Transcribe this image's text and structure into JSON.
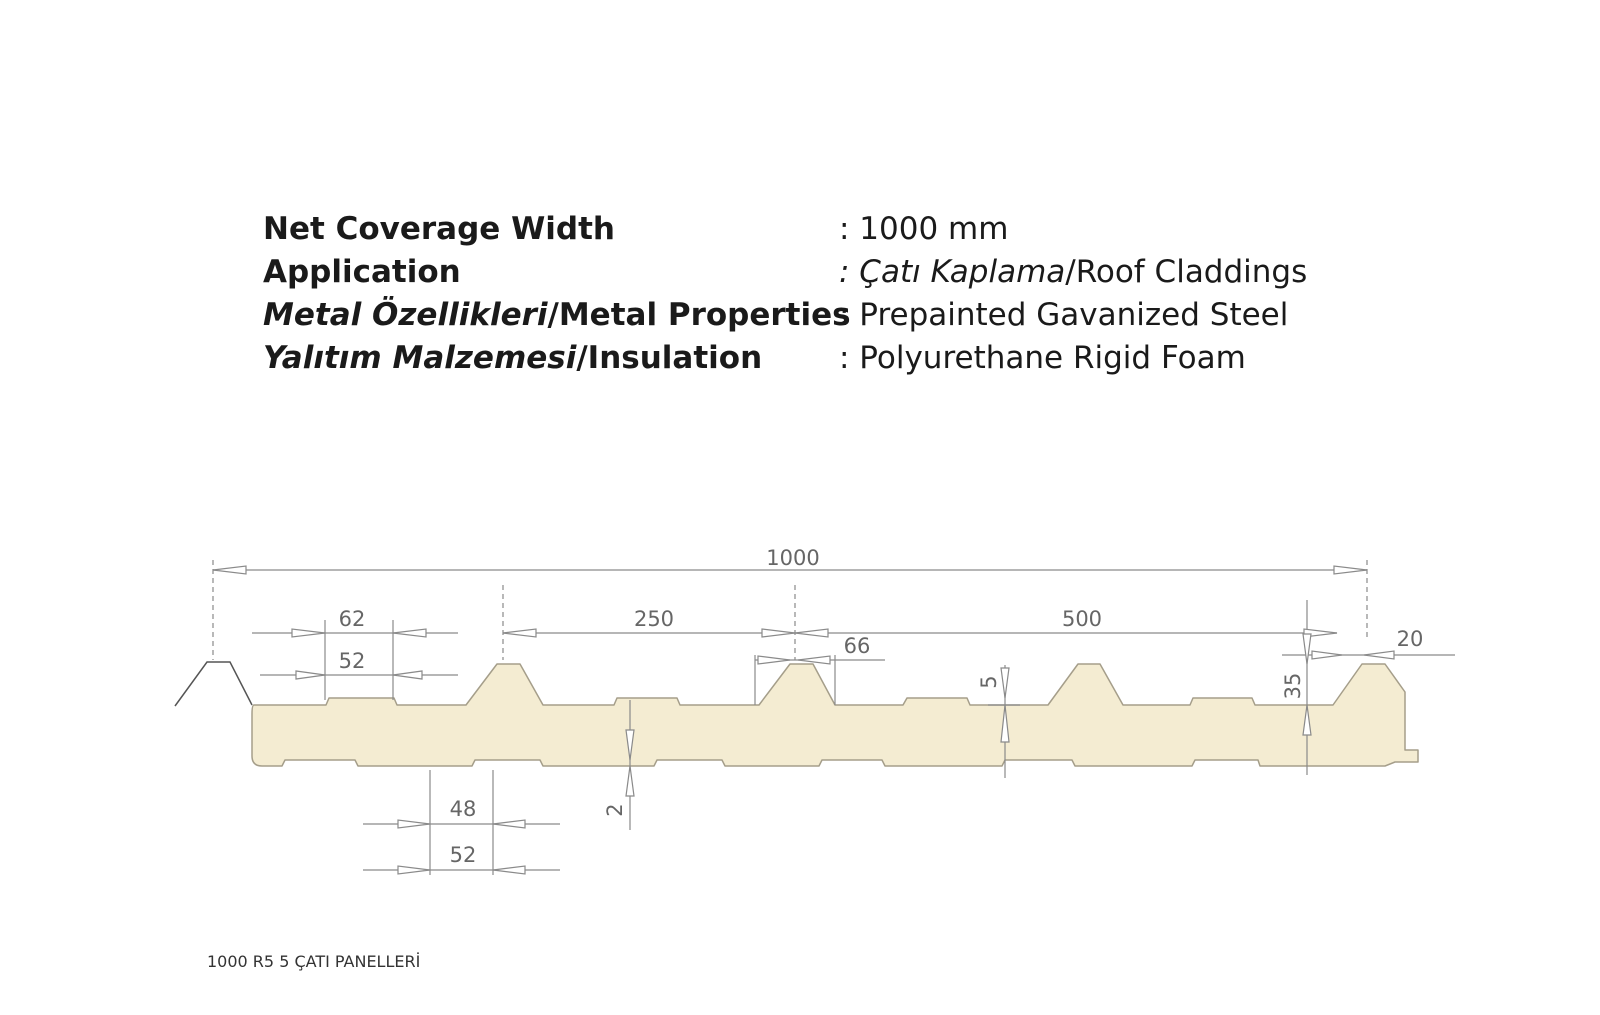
{
  "specs": [
    {
      "label_italic": "",
      "label_plain": "Net Coverage Width",
      "value_italic": "",
      "value_plain": ": 1000 mm"
    },
    {
      "label_italic": "",
      "label_plain": "Application",
      "value_italic": ": Çatı Kaplama",
      "value_plain": "/Roof Claddings"
    },
    {
      "label_italic": "Metal Özellikleri",
      "label_plain": "/Metal Properties",
      "value_italic": "",
      "value_plain": ": Prepainted Gavanized Steel"
    },
    {
      "label_italic": "Yalıtım Malzemesi",
      "label_plain": "/Insulation",
      "value_italic": "",
      "value_plain": ": Polyurethane Rigid Foam"
    }
  ],
  "dimensions": {
    "overall": "1000",
    "rib_top": "62",
    "rib_inner": "52",
    "pitch": "250",
    "span": "500",
    "rib_base": "66",
    "edge": "20",
    "rib_height": "35",
    "minor_rib": "5",
    "skin": "2",
    "bottom_inner": "48",
    "bottom_outer": "52"
  },
  "colors": {
    "panel_fill": "#f4ecd2",
    "panel_stroke": "#a59e8a",
    "dim_line": "#8a8a8a"
  },
  "caption": "1000 R5 5 ÇATI PANELLERİ"
}
